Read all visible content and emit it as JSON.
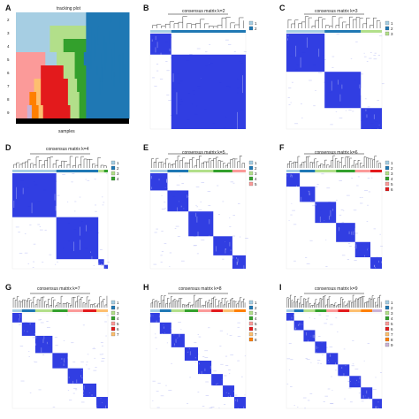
{
  "panels": [
    {
      "letter": "A",
      "title": "tracking plot",
      "xlabel": "samples",
      "ytick_labels": [
        "2",
        "3",
        "4",
        "5",
        "6",
        "7",
        "8",
        "9"
      ]
    },
    {
      "letter": "B",
      "title": "consensus matrix k=2",
      "legend": [
        "1",
        "2"
      ]
    },
    {
      "letter": "C",
      "title": "consensus matrix k=3",
      "legend": [
        "1",
        "2",
        "3"
      ]
    },
    {
      "letter": "D",
      "title": "consensus matrix k=4",
      "legend": [
        "1",
        "2",
        "3",
        "4"
      ]
    },
    {
      "letter": "E",
      "title": "consensus matrix k=5",
      "legend": [
        "1",
        "2",
        "3",
        "4",
        "5"
      ]
    },
    {
      "letter": "F",
      "title": "consensus matrix k=6",
      "legend": [
        "1",
        "2",
        "3",
        "4",
        "5",
        "6"
      ]
    },
    {
      "letter": "G",
      "title": "consensus matrix k=7",
      "legend": [
        "1",
        "2",
        "3",
        "4",
        "5",
        "6",
        "7"
      ]
    },
    {
      "letter": "H",
      "title": "consensus matrix k=8",
      "legend": [
        "1",
        "2",
        "3",
        "4",
        "5",
        "6",
        "7",
        "8"
      ]
    },
    {
      "letter": "I",
      "title": "consensus matrix k=9",
      "legend": [
        "1",
        "2",
        "3",
        "4",
        "5",
        "6",
        "7",
        "8",
        "9"
      ]
    }
  ],
  "colors": {
    "consensus_blue": "#1f2ee0",
    "consensus_light": "#aeb4f2",
    "cluster_palette": [
      "#a6cee3",
      "#1f78b4",
      "#b2df8a",
      "#33a02c",
      "#fb9a99",
      "#e31a1c",
      "#fdbf6f",
      "#ff7f00",
      "#cab2d6"
    ]
  },
  "chart_data": [
    {
      "type": "heatmap",
      "title": "tracking plot",
      "xlabel": "samples",
      "ylabel": "",
      "y_categories": [
        "2",
        "3",
        "4",
        "5",
        "6",
        "7",
        "8",
        "9"
      ],
      "rows": [
        {
          "k": "2",
          "segments": [
            {
              "cluster": 1,
              "share": 0.62
            },
            {
              "cluster": 2,
              "share": 0.38
            }
          ]
        },
        {
          "k": "3",
          "segments": [
            {
              "cluster": 1,
              "share": 0.3
            },
            {
              "cluster": 3,
              "share": 0.32
            },
            {
              "cluster": 2,
              "share": 0.38
            }
          ]
        },
        {
          "k": "4",
          "segments": [
            {
              "cluster": 1,
              "share": 0.3
            },
            {
              "cluster": 3,
              "share": 0.12
            },
            {
              "cluster": 4,
              "share": 0.2
            },
            {
              "cluster": 2,
              "share": 0.38
            }
          ]
        },
        {
          "k": "5",
          "segments": [
            {
              "cluster": 5,
              "share": 0.26
            },
            {
              "cluster": 1,
              "share": 0.1
            },
            {
              "cluster": 3,
              "share": 0.16
            },
            {
              "cluster": 4,
              "share": 0.08
            },
            {
              "cluster": 2,
              "share": 0.4
            }
          ]
        },
        {
          "k": "6",
          "segments": [
            {
              "cluster": 5,
              "share": 0.22
            },
            {
              "cluster": 6,
              "share": 0.2
            },
            {
              "cluster": 3,
              "share": 0.1
            },
            {
              "cluster": 4,
              "share": 0.1
            },
            {
              "cluster": 2,
              "share": 0.38
            }
          ]
        },
        {
          "k": "7",
          "segments": [
            {
              "cluster": 5,
              "share": 0.16
            },
            {
              "cluster": 7,
              "share": 0.06
            },
            {
              "cluster": 6,
              "share": 0.24
            },
            {
              "cluster": 3,
              "share": 0.08
            },
            {
              "cluster": 4,
              "share": 0.08
            },
            {
              "cluster": 2,
              "share": 0.38
            }
          ]
        },
        {
          "k": "8",
          "segments": [
            {
              "cluster": 5,
              "share": 0.12
            },
            {
              "cluster": 8,
              "share": 0.06
            },
            {
              "cluster": 7,
              "share": 0.04
            },
            {
              "cluster": 6,
              "share": 0.24
            },
            {
              "cluster": 3,
              "share": 0.1
            },
            {
              "cluster": 4,
              "share": 0.06
            },
            {
              "cluster": 2,
              "share": 0.38
            }
          ]
        },
        {
          "k": "9",
          "segments": [
            {
              "cluster": 5,
              "share": 0.1
            },
            {
              "cluster": 9,
              "share": 0.04
            },
            {
              "cluster": 8,
              "share": 0.06
            },
            {
              "cluster": 7,
              "share": 0.04
            },
            {
              "cluster": 6,
              "share": 0.24
            },
            {
              "cluster": 3,
              "share": 0.08
            },
            {
              "cluster": 4,
              "share": 0.06
            },
            {
              "cluster": 2,
              "share": 0.38
            }
          ]
        }
      ]
    },
    {
      "type": "heatmap",
      "title": "consensus matrix k=2",
      "k": 2,
      "cluster_shares": [
        0.22,
        0.78
      ],
      "legend": [
        "1",
        "2"
      ]
    },
    {
      "type": "heatmap",
      "title": "consensus matrix k=3",
      "k": 3,
      "cluster_shares": [
        0.4,
        0.38,
        0.22
      ],
      "legend": [
        "1",
        "2",
        "3"
      ]
    },
    {
      "type": "heatmap",
      "title": "consensus matrix k=4",
      "k": 4,
      "cluster_shares": [
        0.46,
        0.44,
        0.06,
        0.04
      ],
      "legend": [
        "1",
        "2",
        "3",
        "4"
      ]
    },
    {
      "type": "heatmap",
      "title": "consensus matrix k=5",
      "k": 5,
      "cluster_shares": [
        0.18,
        0.22,
        0.26,
        0.2,
        0.14
      ],
      "legend": [
        "1",
        "2",
        "3",
        "4",
        "5"
      ]
    },
    {
      "type": "heatmap",
      "title": "consensus matrix k=6",
      "k": 6,
      "cluster_shares": [
        0.14,
        0.16,
        0.22,
        0.2,
        0.16,
        0.12
      ],
      "legend": [
        "1",
        "2",
        "3",
        "4",
        "5",
        "6"
      ]
    },
    {
      "type": "heatmap",
      "title": "consensus matrix k=7",
      "k": 7,
      "cluster_shares": [
        0.1,
        0.14,
        0.18,
        0.16,
        0.16,
        0.14,
        0.12
      ],
      "legend": [
        "1",
        "2",
        "3",
        "4",
        "5",
        "6",
        "7"
      ]
    },
    {
      "type": "heatmap",
      "title": "consensus matrix k=8",
      "k": 8,
      "cluster_shares": [
        0.1,
        0.12,
        0.14,
        0.14,
        0.14,
        0.12,
        0.12,
        0.12
      ],
      "legend": [
        "1",
        "2",
        "3",
        "4",
        "5",
        "6",
        "7",
        "8"
      ]
    },
    {
      "type": "heatmap",
      "title": "consensus matrix k=9",
      "k": 9,
      "cluster_shares": [
        0.08,
        0.1,
        0.12,
        0.12,
        0.12,
        0.12,
        0.12,
        0.12,
        0.1
      ],
      "legend": [
        "1",
        "2",
        "3",
        "4",
        "5",
        "6",
        "7",
        "8",
        "9"
      ]
    }
  ]
}
